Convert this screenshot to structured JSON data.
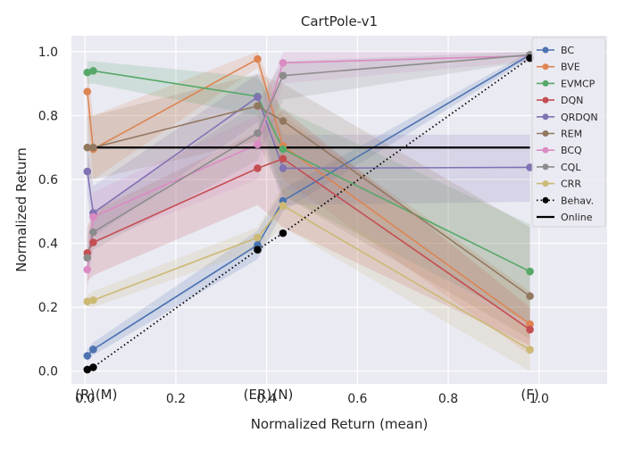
{
  "chart_data": {
    "type": "line",
    "title": "CartPole-v1",
    "xlabel": "Normalized Return (mean)",
    "ylabel": "Normalized Return",
    "xlim": [
      -0.03,
      1.15
    ],
    "ylim": [
      -0.04,
      1.05
    ],
    "xticks": [
      0.0,
      0.2,
      0.4,
      0.6,
      0.8,
      1.0
    ],
    "xtick_labels": [
      "0.0",
      "0.2",
      "0.4",
      "0.6",
      "0.8",
      "1.0"
    ],
    "yticks": [
      0.0,
      0.2,
      0.4,
      0.6,
      0.8,
      1.0
    ],
    "ytick_labels": [
      "0.0",
      "0.2",
      "0.4",
      "0.6",
      "0.8",
      "1.0"
    ],
    "grid": true,
    "legend_position": "right",
    "background": "#eaeaf2",
    "annotations": [
      {
        "text": "(R)",
        "x": 0.0
      },
      {
        "text": "(M)",
        "x": 0.047
      },
      {
        "text": "(ER)",
        "x": 0.38
      },
      {
        "text": "(N)",
        "x": 0.436
      },
      {
        "text": "(F)",
        "x": 0.98
      }
    ],
    "series": [
      {
        "name": "BC",
        "color": "#4c72b0",
        "x": [
          0.005,
          0.018,
          0.38,
          0.436,
          0.98
        ],
        "y": [
          0.048,
          0.068,
          0.395,
          0.533,
          0.99
        ],
        "lower": [
          0.03,
          0.05,
          0.35,
          0.5,
          0.98
        ],
        "upper": [
          0.07,
          0.09,
          0.44,
          0.57,
          1.0
        ]
      },
      {
        "name": "BVE",
        "color": "#dd8452",
        "x": [
          0.005,
          0.018,
          0.38,
          0.436,
          0.98
        ],
        "y": [
          0.875,
          0.695,
          0.977,
          0.705,
          0.147
        ],
        "lower": [
          0.8,
          0.6,
          0.95,
          0.6,
          0.05
        ],
        "upper": [
          0.95,
          0.8,
          1.0,
          0.8,
          0.25
        ]
      },
      {
        "name": "EVMCP",
        "color": "#55a868",
        "x": [
          0.005,
          0.018,
          0.38,
          0.436,
          0.98
        ],
        "y": [
          0.935,
          0.94,
          0.86,
          0.695,
          0.312
        ],
        "lower": [
          0.9,
          0.9,
          0.8,
          0.55,
          0.15
        ],
        "upper": [
          0.97,
          0.97,
          0.92,
          0.82,
          0.46
        ]
      },
      {
        "name": "DQN",
        "color": "#c44e52",
        "x": [
          0.005,
          0.018,
          0.38,
          0.436,
          0.98
        ],
        "y": [
          0.37,
          0.403,
          0.635,
          0.665,
          0.13
        ],
        "lower": [
          0.28,
          0.3,
          0.52,
          0.45,
          0.08
        ],
        "upper": [
          0.45,
          0.5,
          0.75,
          0.82,
          0.2
        ]
      },
      {
        "name": "QRDQN",
        "color": "#8172b3",
        "x": [
          0.005,
          0.018,
          0.38,
          0.436,
          0.98
        ],
        "y": [
          0.625,
          0.495,
          0.858,
          0.635,
          0.638
        ],
        "lower": [
          0.55,
          0.42,
          0.78,
          0.52,
          0.53
        ],
        "upper": [
          0.7,
          0.58,
          0.93,
          0.74,
          0.74
        ]
      },
      {
        "name": "REM",
        "color": "#937860",
        "x": [
          0.005,
          0.018,
          0.38,
          0.436,
          0.98
        ],
        "y": [
          0.7,
          0.7,
          0.83,
          0.783,
          0.235
        ],
        "lower": [
          0.6,
          0.6,
          0.72,
          0.55,
          0.1
        ],
        "upper": [
          0.8,
          0.8,
          0.93,
          0.9,
          0.45
        ]
      },
      {
        "name": "BCQ",
        "color": "#da8bc3",
        "x": [
          0.005,
          0.018,
          0.38,
          0.436,
          0.98
        ],
        "y": [
          0.318,
          0.483,
          0.71,
          0.965,
          0.987
        ],
        "lower": [
          0.25,
          0.4,
          0.6,
          0.9,
          0.97
        ],
        "upper": [
          0.38,
          0.56,
          0.8,
          1.0,
          1.0
        ]
      },
      {
        "name": "CQL",
        "color": "#8c8c8c",
        "x": [
          0.005,
          0.018,
          0.38,
          0.436,
          0.98
        ],
        "y": [
          0.355,
          0.435,
          0.745,
          0.925,
          0.99
        ],
        "lower": [
          0.3,
          0.38,
          0.66,
          0.85,
          0.97
        ],
        "upper": [
          0.42,
          0.5,
          0.84,
          0.97,
          1.0
        ]
      },
      {
        "name": "CRR",
        "color": "#ccb974",
        "x": [
          0.005,
          0.018,
          0.38,
          0.436,
          0.98
        ],
        "y": [
          0.218,
          0.222,
          0.418,
          0.518,
          0.067
        ],
        "lower": [
          0.2,
          0.2,
          0.38,
          0.45,
          0.0
        ],
        "upper": [
          0.24,
          0.25,
          0.45,
          0.58,
          0.13
        ]
      },
      {
        "name": "Behav.",
        "color": "#000000",
        "x": [
          0.005,
          0.018,
          0.38,
          0.436,
          0.98
        ],
        "y": [
          0.005,
          0.012,
          0.38,
          0.432,
          0.98
        ],
        "style": "dotted"
      },
      {
        "name": "Online",
        "color": "#000000",
        "hline": 0.7,
        "x": [
          0.005,
          0.98
        ],
        "style": "solid"
      }
    ]
  }
}
